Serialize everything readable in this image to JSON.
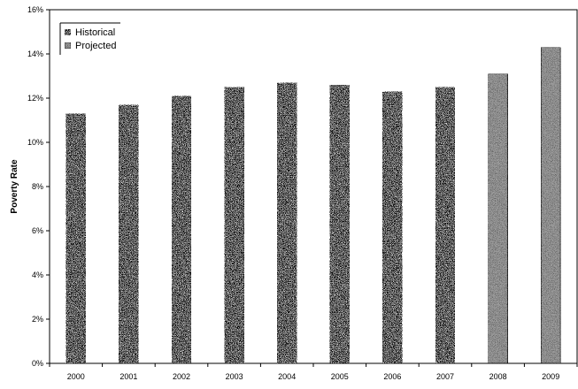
{
  "chart_data": {
    "type": "bar",
    "categories": [
      "2000",
      "2001",
      "2002",
      "2003",
      "2004",
      "2005",
      "2006",
      "2007",
      "2008",
      "2009"
    ],
    "series": [
      {
        "name": "Historical",
        "values": [
          11.3,
          11.7,
          12.1,
          12.5,
          12.7,
          12.6,
          12.3,
          12.5,
          null,
          null
        ]
      },
      {
        "name": "Projected",
        "values": [
          null,
          null,
          null,
          null,
          null,
          null,
          null,
          null,
          13.1,
          14.3
        ]
      }
    ],
    "title": "",
    "xlabel": "",
    "ylabel": "Poverty Rate",
    "ylim": [
      0,
      16
    ],
    "yticks": [
      0,
      2,
      4,
      6,
      8,
      10,
      12,
      14,
      16
    ],
    "ytick_labels": [
      "0%",
      "2%",
      "4%",
      "6%",
      "8%",
      "10%",
      "12%",
      "14%",
      "16%"
    ],
    "legend_position": "top-left",
    "grid": false,
    "colors": {
      "Historical": "#111111",
      "Projected": "#9a9a9a"
    }
  }
}
